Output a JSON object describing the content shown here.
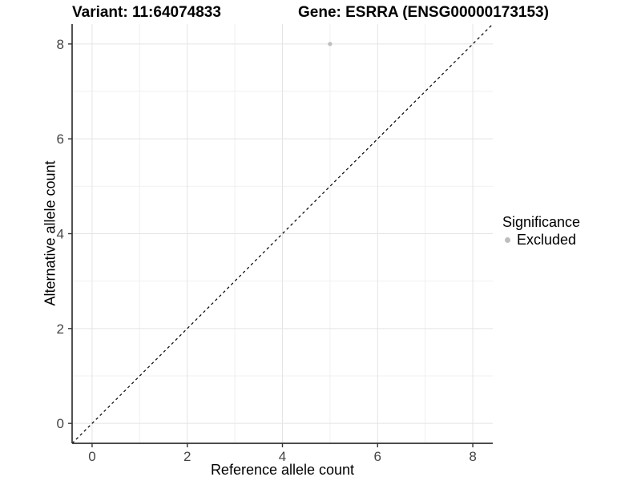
{
  "chart_data": {
    "type": "scatter",
    "titles": {
      "left": "Variant: 11:64074833",
      "right": "Gene: ESRRA (ENSG00000173153)"
    },
    "xlabel": "Reference allele count",
    "ylabel": "Alternative allele count",
    "x_ticks": [
      0,
      2,
      4,
      6,
      8
    ],
    "y_ticks": [
      0,
      2,
      4,
      6,
      8
    ],
    "x_minor_gridlines": [
      1,
      3,
      5,
      7
    ],
    "y_minor_gridlines": [
      1,
      3,
      5,
      7
    ],
    "xlim": [
      -0.42,
      8.42
    ],
    "ylim": [
      -0.42,
      8.42
    ],
    "grid": "on",
    "series": [
      {
        "name": "Excluded",
        "color": "#bebebe",
        "points": [
          {
            "x": 5,
            "y": 8
          }
        ]
      }
    ],
    "reference_line": {
      "kind": "identity y=x",
      "style": "dashed",
      "color": "#000000"
    },
    "legend": {
      "title": "Significance",
      "position": "right",
      "entries": [
        {
          "label": "Excluded",
          "color": "#bebebe",
          "marker": "circle"
        }
      ]
    },
    "colors": {
      "background": "#ffffff",
      "grid_major": "#e4e4e4",
      "grid_minor": "#f0f0f0",
      "axis_line": "#333333",
      "tick_label": "#444444",
      "text": "#000000"
    }
  }
}
